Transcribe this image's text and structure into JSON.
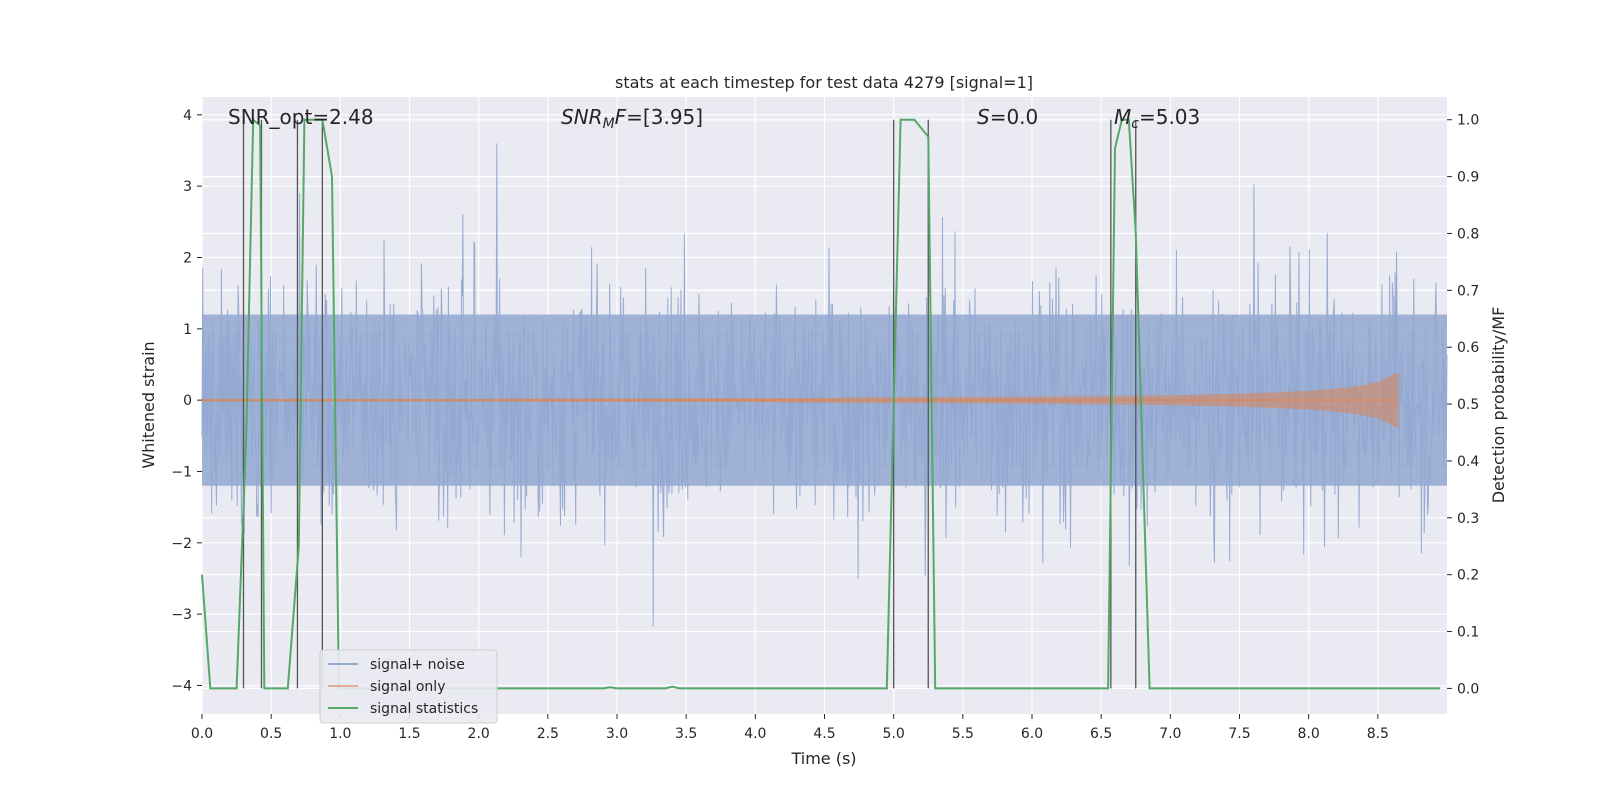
{
  "chart_data": {
    "type": "line",
    "title": "stats at each timestep for test data 4279 [signal=1]",
    "xlabel": "Time (s)",
    "ylabel_left": "Whitened strain",
    "ylabel_right": "Detection probability/MF",
    "xlim": [
      0.0,
      9.0
    ],
    "ylim_left": [
      -4.4,
      4.25
    ],
    "ylim_right": [
      -0.045,
      1.04
    ],
    "x_ticks": [
      "0.0",
      "0.5",
      "1.0",
      "1.5",
      "2.0",
      "2.5",
      "3.0",
      "3.5",
      "4.0",
      "4.5",
      "5.0",
      "5.5",
      "6.0",
      "6.5",
      "7.0",
      "7.5",
      "8.0",
      "8.5"
    ],
    "y_ticks_left": [
      "4",
      "3",
      "2",
      "1",
      "0",
      "−1",
      "−2",
      "−3",
      "−4"
    ],
    "y_ticks_right": [
      "1.0",
      "0.9",
      "0.8",
      "0.7",
      "0.6",
      "0.5",
      "0.4",
      "0.3",
      "0.2",
      "0.1",
      "0.0"
    ],
    "grid": true,
    "legend_position": "lower-left",
    "annotations": [
      {
        "text": "SNR_opt=2.48",
        "x": 0.2
      },
      {
        "text": "SNR_MF=[3.95]",
        "x": 2.6
      },
      {
        "text": "S=0.0",
        "x": 5.6
      },
      {
        "text": "M_c=5.03",
        "x": 6.65
      }
    ],
    "series": [
      {
        "name": "signal+ noise",
        "color": "#92a8d1",
        "description_values": "noise envelope approx ±1.5 with spikes to about ±3.5"
      },
      {
        "name": "signal only",
        "color": "#dd8452",
        "envelope": {
          "x": [
            0.0,
            2.0,
            4.0,
            5.0,
            6.0,
            7.0,
            7.5,
            8.0,
            8.3,
            8.5,
            8.6,
            8.65
          ],
          "amp": [
            0.02,
            0.02,
            0.03,
            0.04,
            0.05,
            0.07,
            0.09,
            0.13,
            0.18,
            0.25,
            0.35,
            0.4
          ]
        }
      },
      {
        "name": "signal statistics",
        "color": "#55a868",
        "x": [
          0.0,
          0.06,
          0.25,
          0.32,
          0.37,
          0.42,
          0.45,
          0.5,
          0.62,
          0.7,
          0.74,
          0.8,
          0.87,
          0.94,
          0.99,
          1.05,
          2.9,
          2.95,
          3.0,
          3.35,
          3.4,
          3.45,
          4.95,
          5.0,
          5.05,
          5.15,
          5.25,
          5.3,
          6.55,
          6.6,
          6.65,
          6.7,
          6.75,
          6.85,
          8.95
        ],
        "y": [
          0.2,
          0.0,
          0.0,
          0.45,
          1.0,
          0.99,
          0.0,
          0.0,
          0.0,
          0.25,
          1.0,
          1.0,
          1.0,
          0.9,
          0.0,
          0.0,
          0.0,
          0.002,
          0.0,
          0.0,
          0.003,
          0.0,
          0.0,
          0.5,
          1.0,
          1.0,
          0.97,
          0.0,
          0.0,
          0.95,
          1.0,
          1.0,
          0.8,
          0.0,
          0.0
        ]
      }
    ],
    "vertical_markers_x": [
      0.3,
      0.43,
      0.69,
      0.87,
      5.0,
      5.25,
      6.57,
      6.75
    ]
  }
}
